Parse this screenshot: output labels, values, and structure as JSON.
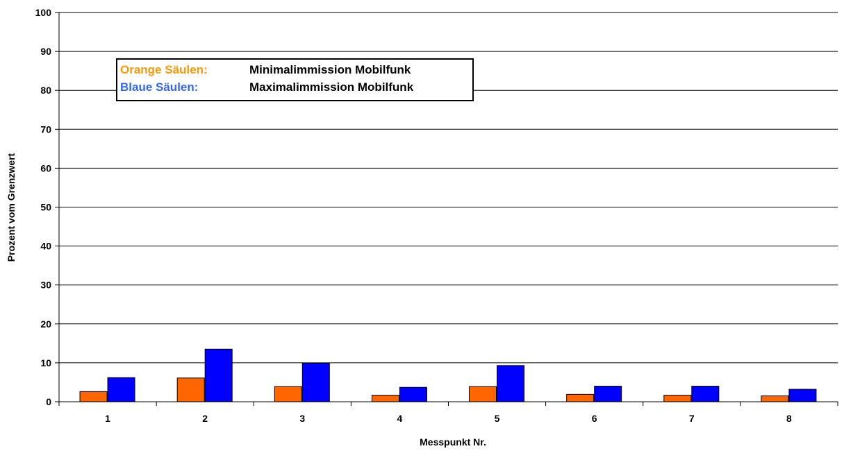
{
  "colors": {
    "min": "#FF6600",
    "max": "#0000FF",
    "legend_min": "#FF9900",
    "legend_max": "#3366FF"
  },
  "legend": {
    "row1_key": "Orange Säulen:",
    "row1_value": "Minimalimmission Mobilfunk",
    "row2_key": "Blaue Säulen:",
    "row2_value": "Maximalimmission Mobilfunk"
  },
  "chart_data": {
    "type": "bar",
    "categories": [
      "1",
      "2",
      "3",
      "4",
      "5",
      "6",
      "7",
      "8"
    ],
    "series": [
      {
        "values": [
          2.6,
          6.1,
          3.9,
          1.7,
          3.9,
          1.9,
          1.7,
          1.5
        ]
      },
      {
        "values": [
          6.2,
          13.5,
          9.9,
          3.7,
          9.3,
          4.0,
          4.0,
          3.2
        ]
      }
    ],
    "title": "",
    "xlabel": "Messpunkt Nr.",
    "ylabel": "Prozent vom Grenzwert",
    "ylim": [
      0,
      100
    ],
    "yticks": [
      0,
      10,
      20,
      30,
      40,
      50,
      60,
      70,
      80,
      90,
      100
    ],
    "grid": true,
    "legend_position": "top-left"
  }
}
